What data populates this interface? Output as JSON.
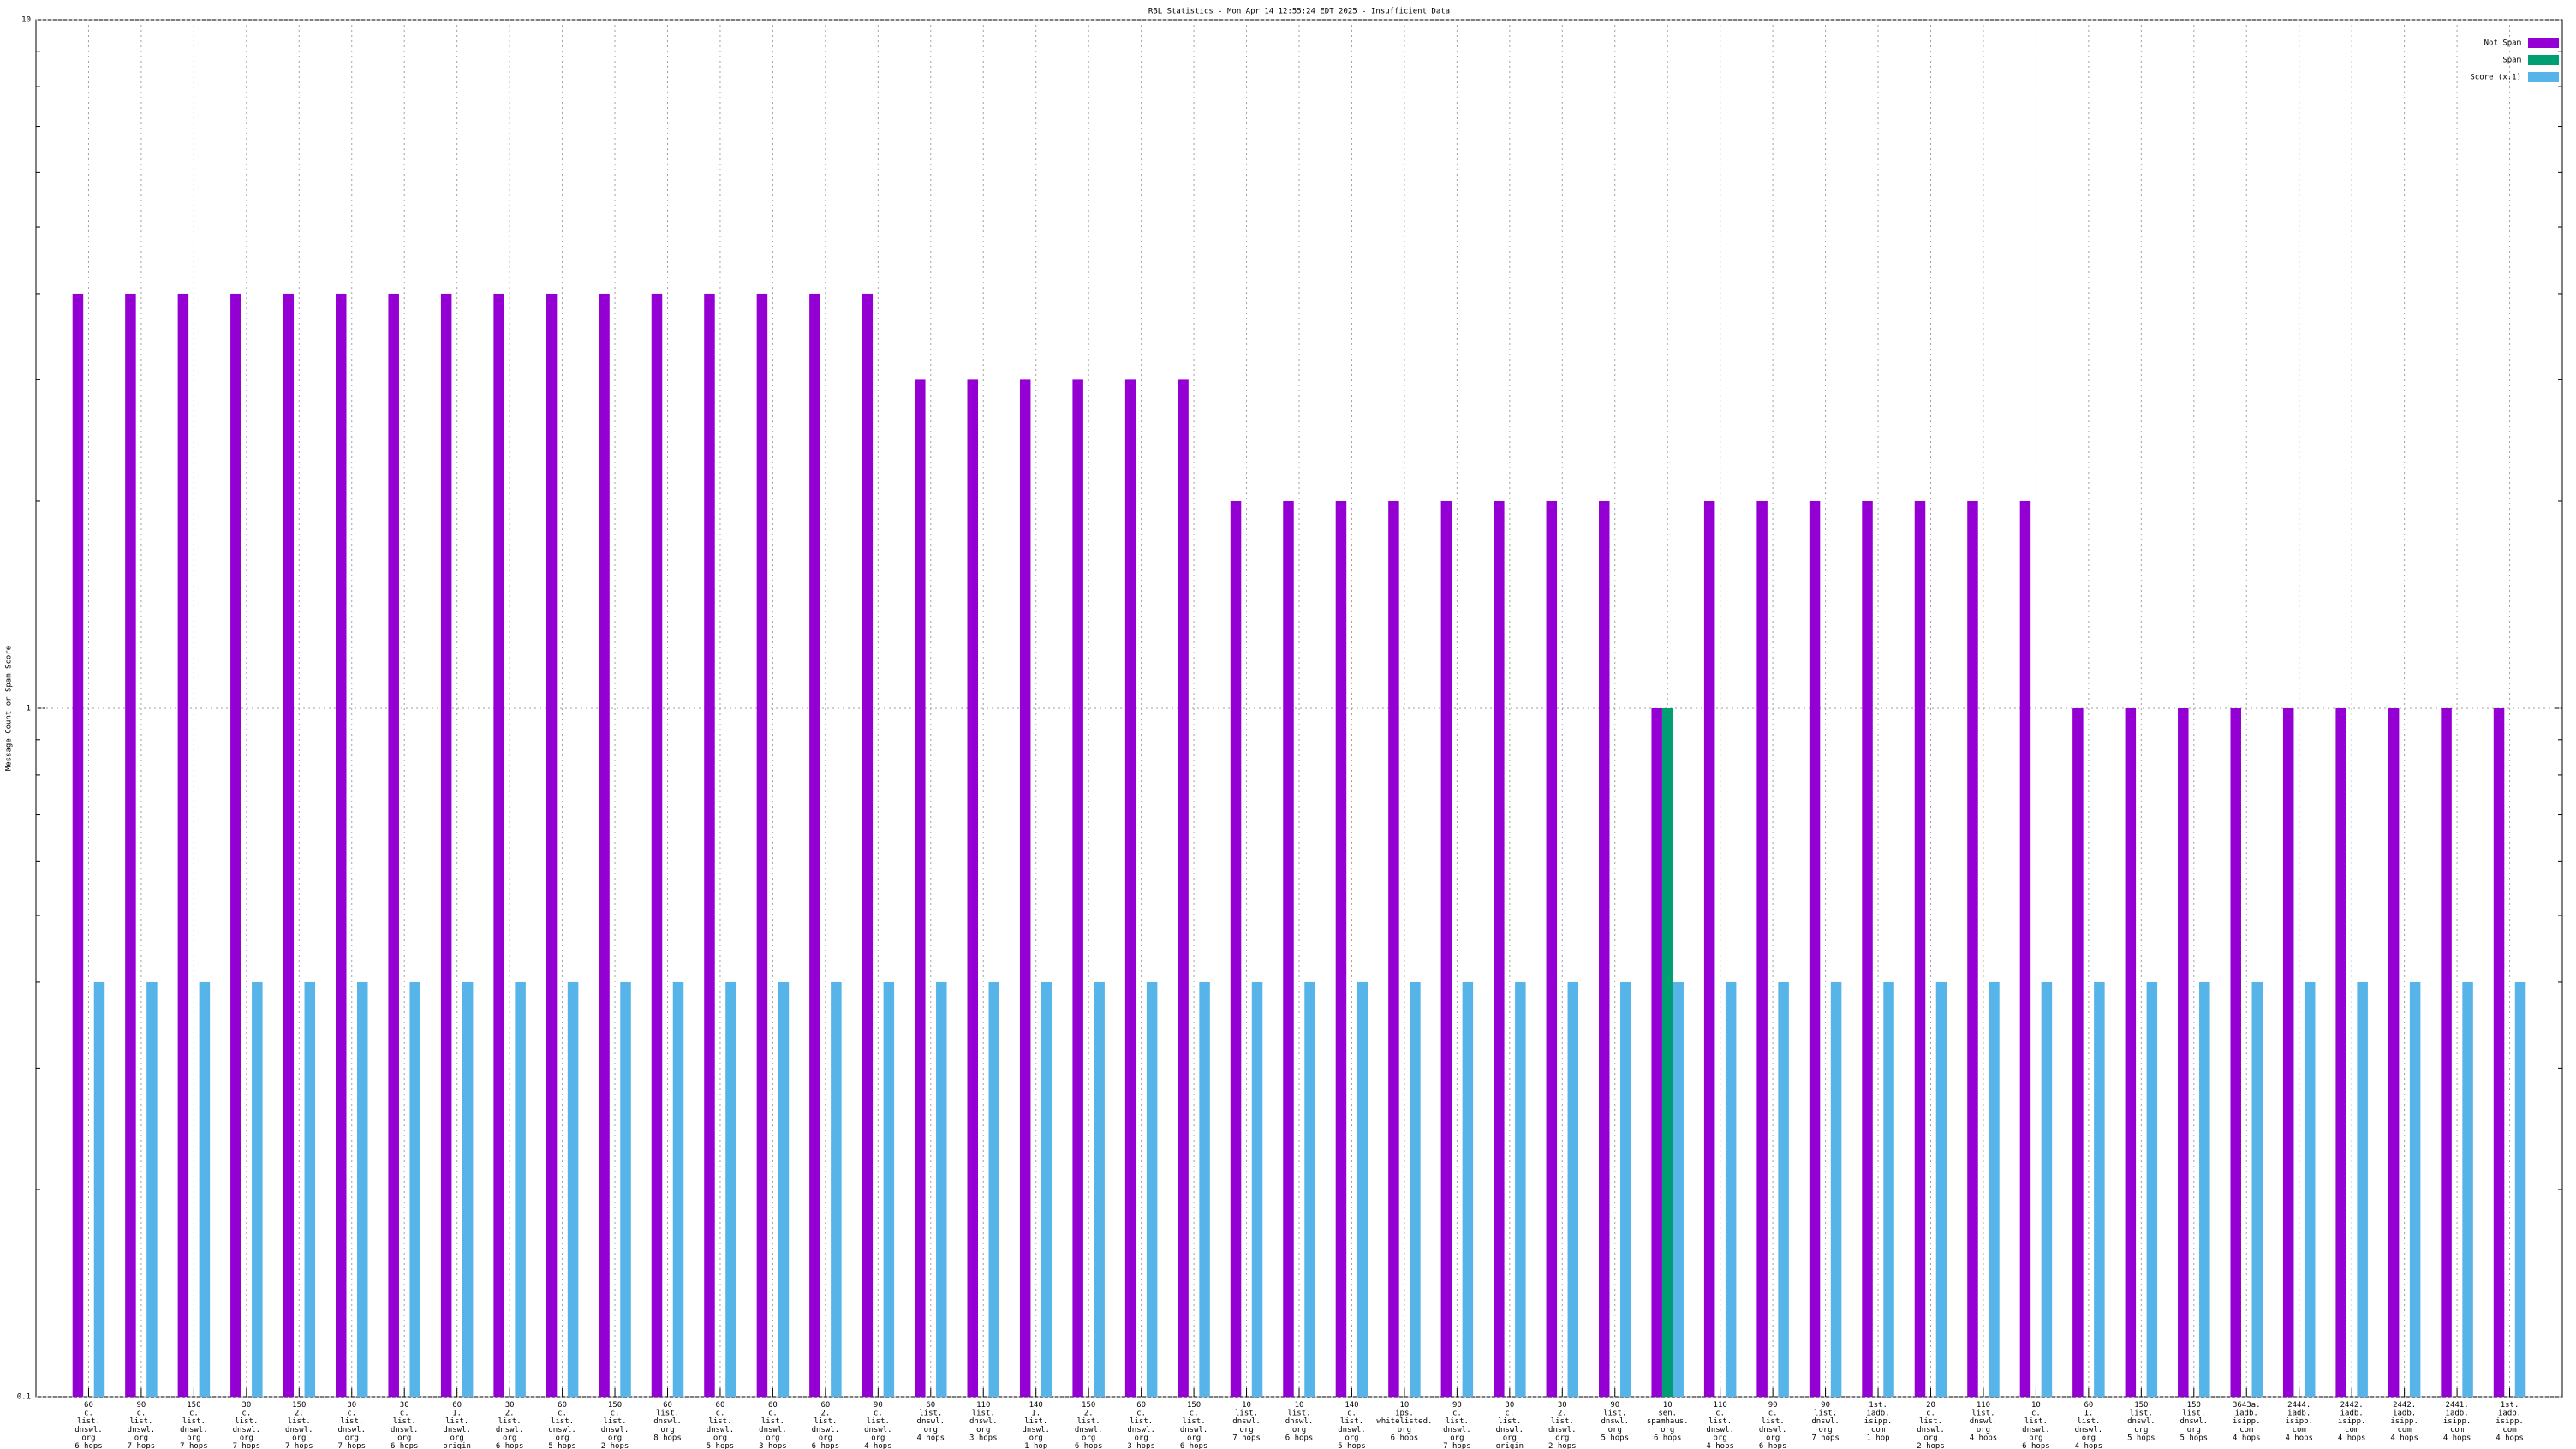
{
  "chart_data": {
    "type": "bar",
    "title": "RBL Statistics - Mon Apr 14 12:55:24 EDT 2025 - Insufficient Data",
    "y_label": "Message Count or Spam Score",
    "log_scale_y": true,
    "grid": true,
    "legend": "top-right",
    "ylim": [
      0.1,
      10
    ],
    "yticks": [
      0.1,
      1,
      10
    ],
    "categories": [
      "60\nc.\nlist.\ndnswl.\norg\n6 hops",
      "90\nc.\nlist.\ndnswl.\norg\n7 hops",
      "150\nc.\nlist.\ndnswl.\norg\n7 hops",
      "30\nc.\nlist.\ndnswl.\norg\n7 hops",
      "150\n2.\nlist.\ndnswl.\norg\n7 hops",
      "30\nc.\nlist.\ndnswl.\norg\n7 hops",
      "30\nc.\nlist.\ndnswl.\norg\n6 hops",
      "60\n1.\nlist.\ndnswl.\norg\norigin",
      "30\n2.\nlist.\ndnswl.\norg\n6 hops",
      "60\nc.\nlist.\ndnswl.\norg\n5 hops",
      "150\nc.\nlist.\ndnswl.\norg\n2 hops",
      "60\nlist.\ndnswl.\norg\n8 hops",
      "60\nc.\nlist.\ndnswl.\norg\n5 hops",
      "60\nc.\nlist.\ndnswl.\norg\n3 hops",
      "60\n2.\nlist.\ndnswl.\norg\n6 hops",
      "90\nc.\nlist.\ndnswl.\norg\n4 hops",
      "60\nlist.\ndnswl.\norg\n4 hops",
      "110\nlist.\ndnswl.\norg\n3 hops",
      "140\n1.\nlist.\ndnswl.\norg\n1 hop",
      "150\n2.\nlist.\ndnswl.\norg\n6 hops",
      "60\nc.\nlist.\ndnswl.\norg\n3 hops",
      "150\nc.\nlist.\ndnswl.\norg\n6 hops",
      "10\nlist.\ndnswl.\norg\n7 hops",
      "10\nlist.\ndnswl.\norg\n6 hops",
      "140\nc.\nlist.\ndnswl.\norg\n5 hops",
      "10\nips.\nwhitelisted.\norg\n6 hops",
      "90\nc.\nlist.\ndnswl.\norg\n7 hops",
      "30\nc.\nlist.\ndnswl.\norg\norigin",
      "30\n2.\nlist.\ndnswl.\norg\n2 hops",
      "90\nlist.\ndnswl.\norg\n5 hops",
      "10\nsen.\nspamhaus.\norg\n6 hops",
      "110\nc.\nlist.\ndnswl.\norg\n4 hops",
      "90\nc.\nlist.\ndnswl.\norg\n6 hops",
      "90\nlist.\ndnswl.\norg\n7 hops",
      "1st.\niadb.\nisipp.\ncom\n1 hop",
      "20\nc.\nlist.\ndnswl.\norg\n2 hops",
      "110\nlist.\ndnswl.\norg\n4 hops",
      "10\nc.\nlist.\ndnswl.\norg\n6 hops",
      "60\n1.\nlist.\ndnswl.\norg\n4 hops",
      "150\nlist.\ndnswl.\norg\n5 hops",
      "150\nlist.\ndnswl.\norg\n5 hops",
      "3643a.\niadb.\nisipp.\ncom\n4 hops",
      "2444.\niadb.\nisipp.\ncom\n4 hops",
      "2442.\niadb.\nisipp.\ncom\n4 hops",
      "2442.\niadb.\nisipp.\ncom\n4 hops",
      "2441.\niadb.\nisipp.\ncom\n4 hops",
      "1st.\niadb.\nisipp.\ncom\n4 hops"
    ],
    "series": [
      {
        "name": "Not Spam",
        "color": "#9400d3",
        "values": [
          4,
          4,
          4,
          4,
          4,
          4,
          4,
          4,
          4,
          4,
          4,
          4,
          4,
          4,
          4,
          4,
          3,
          3,
          3,
          3,
          3,
          3,
          2,
          2,
          2,
          2,
          2,
          2,
          2,
          2,
          1,
          2,
          2,
          2,
          2,
          2,
          2,
          2,
          1,
          1,
          1,
          1,
          1,
          1,
          1,
          1,
          1
        ]
      },
      {
        "name": "Spam",
        "color": "#009e73",
        "values": [
          null,
          null,
          null,
          null,
          null,
          null,
          null,
          null,
          null,
          null,
          null,
          null,
          null,
          null,
          null,
          null,
          null,
          null,
          null,
          null,
          null,
          null,
          null,
          null,
          null,
          null,
          null,
          null,
          null,
          null,
          1,
          null,
          null,
          null,
          null,
          null,
          null,
          null,
          null,
          null,
          null,
          null,
          null,
          null,
          null,
          null,
          null
        ]
      },
      {
        "name": "Score (x.1)",
        "color": "#56b4e9",
        "values": [
          0.4,
          0.4,
          0.4,
          0.4,
          0.4,
          0.4,
          0.4,
          0.4,
          0.4,
          0.4,
          0.4,
          0.4,
          0.4,
          0.4,
          0.4,
          0.4,
          0.4,
          0.4,
          0.4,
          0.4,
          0.4,
          0.4,
          0.4,
          0.4,
          0.4,
          0.4,
          0.4,
          0.4,
          0.4,
          0.4,
          0.4,
          0.4,
          0.4,
          0.4,
          0.4,
          0.4,
          0.4,
          0.4,
          0.4,
          0.4,
          0.4,
          0.4,
          0.4,
          0.4,
          0.4,
          0.4,
          0.4
        ]
      }
    ]
  }
}
